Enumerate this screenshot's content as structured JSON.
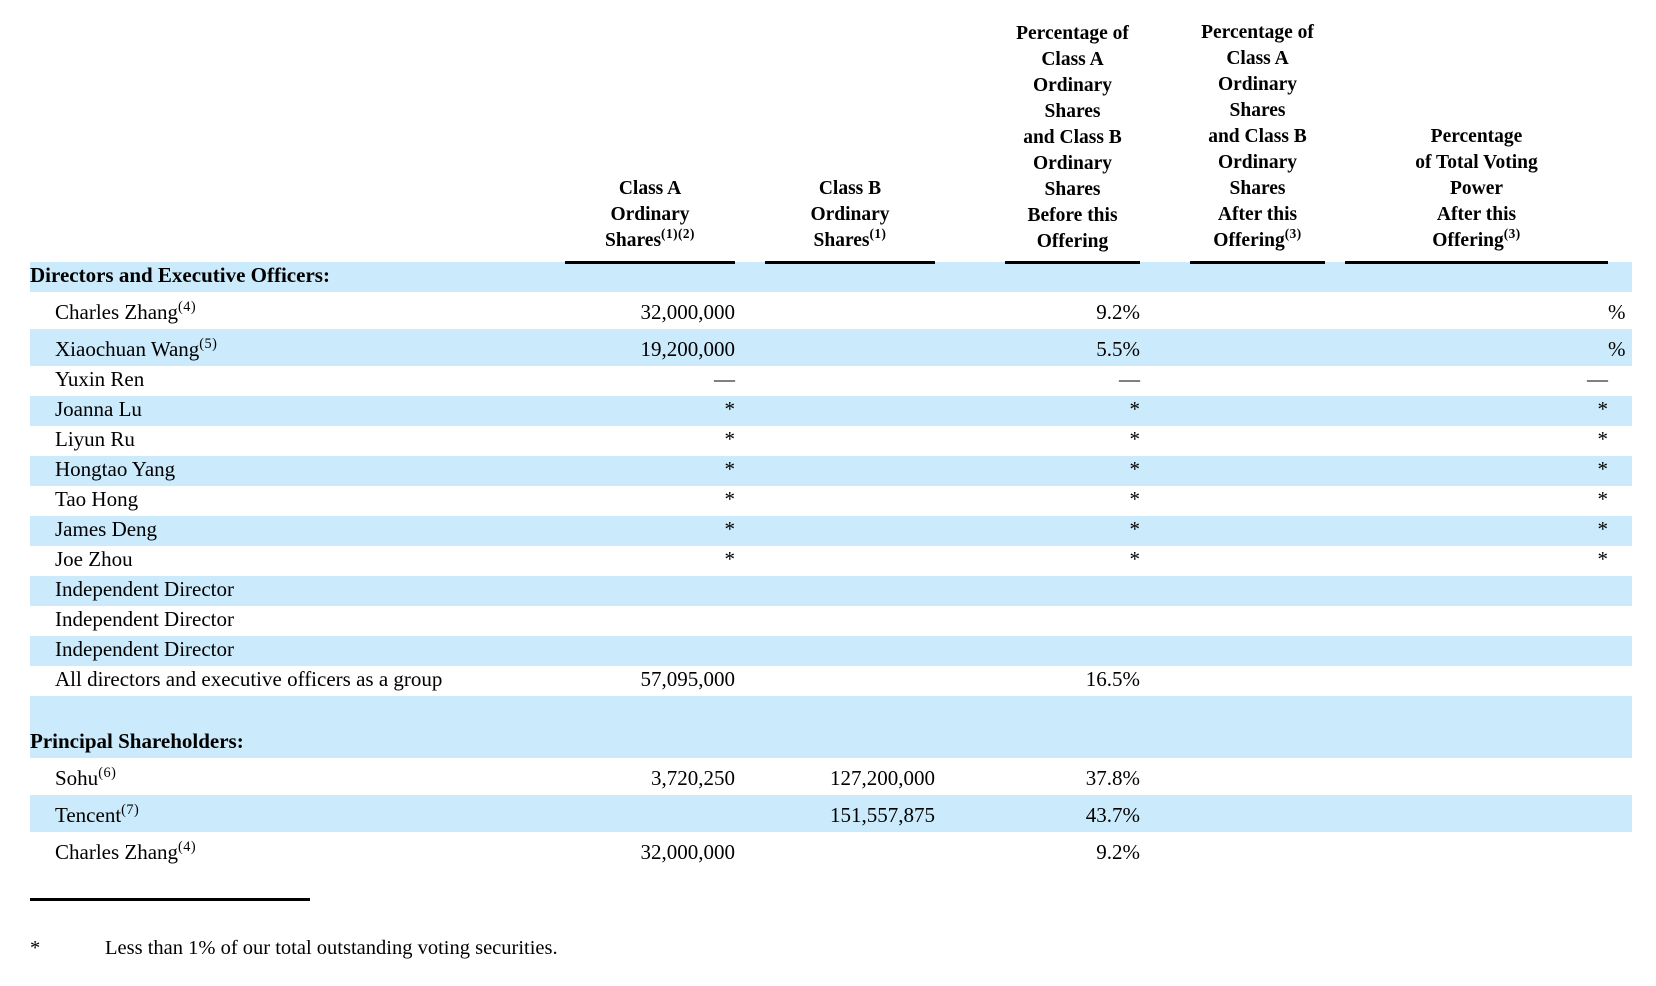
{
  "table": {
    "highlight_color": "#cbeafb",
    "headers": {
      "classA": {
        "text": "Class A\nOrdinary\nShares",
        "sup": "(1)(2)"
      },
      "classB": {
        "text": "Class B\nOrdinary\nShares",
        "sup": "(1)"
      },
      "before": {
        "text": "Percentage of\nClass A\nOrdinary\nShares\nand Class B\nOrdinary\nShares\nBefore this\nOffering",
        "sup": ""
      },
      "after": {
        "text": "Percentage of\nClass A\nOrdinary\nShares\nand Class B\nOrdinary\nShares\nAfter this\nOffering",
        "sup": "(3)"
      },
      "voting": {
        "text": "Percentage\nof Total Voting\nPower\nAfter this\nOffering",
        "sup": "(3)"
      }
    },
    "rows": [
      {
        "kind": "section",
        "label": "Directors and Executive Officers:",
        "shaded": true
      },
      {
        "kind": "data",
        "label": "Charles Zhang",
        "sup": "(4)",
        "classA": "32,000,000",
        "classB": "",
        "before": "9.2%",
        "after": "",
        "voting": "",
        "votingSuffix": "%",
        "tall": true
      },
      {
        "kind": "data",
        "label": "Xiaochuan Wang",
        "sup": "(5)",
        "classA": "19,200,000",
        "classB": "",
        "before": "5.5%",
        "after": "",
        "voting": "",
        "votingSuffix": "%",
        "shaded": true,
        "tall": true
      },
      {
        "kind": "data",
        "label": "Yuxin Ren",
        "classA": "—",
        "classB": "",
        "before": "—",
        "after": "",
        "voting": "—"
      },
      {
        "kind": "data",
        "label": "Joanna Lu",
        "classA": "*",
        "classB": "",
        "before": "*",
        "after": "",
        "voting": "*",
        "shaded": true
      },
      {
        "kind": "data",
        "label": "Liyun Ru",
        "classA": "*",
        "classB": "",
        "before": "*",
        "after": "",
        "voting": "*"
      },
      {
        "kind": "data",
        "label": "Hongtao Yang",
        "classA": "*",
        "classB": "",
        "before": "*",
        "after": "",
        "voting": "*",
        "shaded": true
      },
      {
        "kind": "data",
        "label": "Tao Hong",
        "classA": "*",
        "classB": "",
        "before": "*",
        "after": "",
        "voting": "*"
      },
      {
        "kind": "data",
        "label": "James Deng",
        "classA": "*",
        "classB": "",
        "before": "*",
        "after": "",
        "voting": "*",
        "shaded": true
      },
      {
        "kind": "data",
        "label": "Joe Zhou",
        "classA": "*",
        "classB": "",
        "before": "*",
        "after": "",
        "voting": "*"
      },
      {
        "kind": "data",
        "label": "Independent Director",
        "shaded": true
      },
      {
        "kind": "data",
        "label": "Independent Director"
      },
      {
        "kind": "data",
        "label": "Independent Director",
        "shaded": true
      },
      {
        "kind": "data",
        "label": "All directors and executive officers as a group",
        "classA": "57,095,000",
        "classB": "",
        "before": "16.5%",
        "after": "",
        "voting": ""
      },
      {
        "kind": "spacer",
        "label": "",
        "shaded": true
      },
      {
        "kind": "section",
        "label": "Principal Shareholders:",
        "shaded": true,
        "psHead": true
      },
      {
        "kind": "data",
        "label": "Sohu",
        "sup": "(6)",
        "classA": "3,720,250",
        "classB": "127,200,000",
        "before": "37.8%",
        "after": "",
        "voting": "",
        "tall": true
      },
      {
        "kind": "data",
        "label": "Tencent",
        "sup": "(7)",
        "classA": "",
        "classB": "151,557,875",
        "before": "43.7%",
        "after": "",
        "voting": "",
        "shaded": true,
        "tall": true
      },
      {
        "kind": "data",
        "label": "Charles Zhang",
        "sup": "(4)",
        "classA": "32,000,000",
        "classB": "",
        "before": "9.2%",
        "after": "",
        "voting": "",
        "tall": true
      }
    ]
  },
  "footnote": {
    "symbol": "*",
    "text": "Less than 1% of our total outstanding voting securities."
  }
}
